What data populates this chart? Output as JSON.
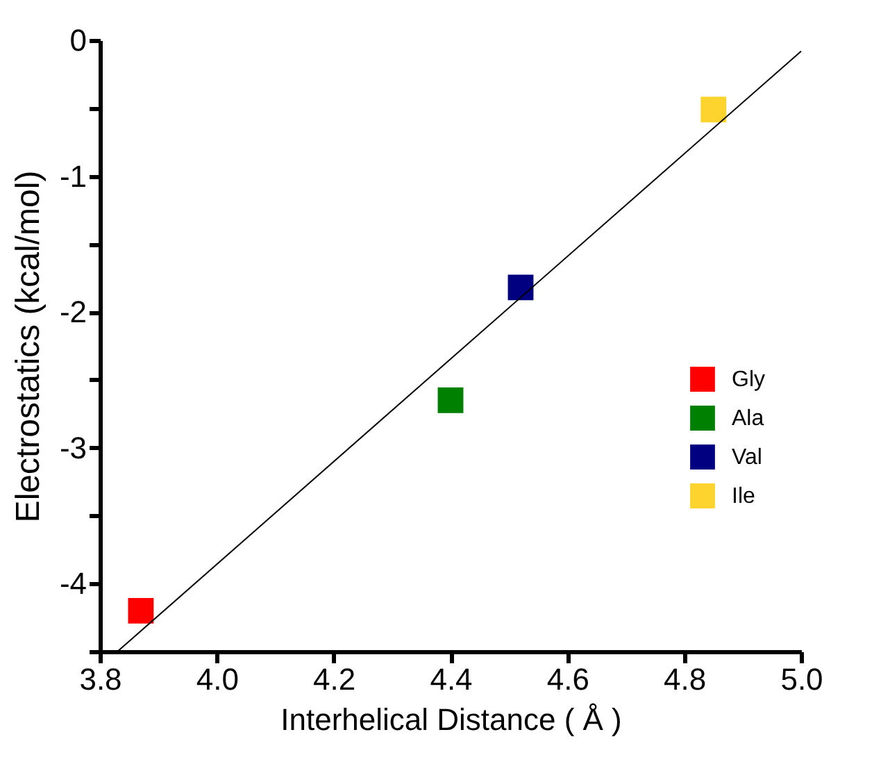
{
  "chart_data": {
    "type": "scatter",
    "xlabel": "Interhelical Distance ( Å )",
    "ylabel": "Electrostatics (kcal/mol)",
    "series": [
      {
        "name": "Gly",
        "color": "#ff0000",
        "x": [
          3.87
        ],
        "values": [
          -4.2
        ]
      },
      {
        "name": "Ala",
        "color": "#008000",
        "x": [
          4.4
        ],
        "values": [
          -2.65
        ]
      },
      {
        "name": "Val",
        "color": "#000080",
        "x": [
          4.52
        ],
        "values": [
          -1.82
        ]
      },
      {
        "name": "Ile",
        "color": "#fdd42e",
        "x": [
          4.85
        ],
        "values": [
          -0.51
        ]
      },
      {
        "type": "line",
        "color": "#000000",
        "marker": "none",
        "x": [
          3.83,
          5.0
        ],
        "values": [
          -4.5,
          -0.08
        ]
      }
    ],
    "xlim": [
      3.8,
      5.0
    ],
    "xticks": [
      3.8,
      {
        "value": 4,
        "label": "4.0"
      },
      4.2,
      4.4,
      4.6,
      4.8,
      {
        "value": 5,
        "label": "5.0"
      }
    ],
    "ylim": [
      -4.5,
      0
    ],
    "yticks": [
      {
        "value": -4.5,
        "label": null
      },
      -4,
      {
        "value": -3.5,
        "label": null
      },
      -3,
      {
        "value": -2.5,
        "label": null
      },
      -2,
      {
        "value": -1.5,
        "label": null
      },
      -1,
      {
        "value": -0.5,
        "label": null
      },
      0
    ],
    "marker": "square",
    "legend": "right",
    "grid": false,
    "line_style": "solid"
  }
}
